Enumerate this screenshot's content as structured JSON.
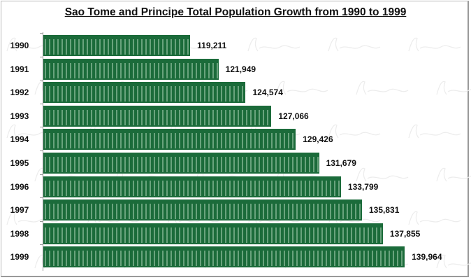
{
  "chart_data": {
    "type": "bar",
    "orientation": "horizontal",
    "title": "Sao Tome and Principe Total Population Growth from 1990 to 1999",
    "categories": [
      "1990",
      "1991",
      "1992",
      "1993",
      "1994",
      "1995",
      "1996",
      "1997",
      "1998",
      "1999"
    ],
    "values": [
      119211,
      121949,
      124574,
      127066,
      129426,
      131679,
      133799,
      135831,
      137855,
      139964
    ],
    "value_labels": [
      "119,211",
      "121,949",
      "124,574",
      "127,066",
      "129,426",
      "131,679",
      "133,799",
      "135,831",
      "137,855",
      "139,964"
    ],
    "xlim": [
      105000,
      140000
    ],
    "grid": false,
    "legend": "none",
    "bar_color": "#1b6b3a",
    "watermark": "Afrolaurel"
  }
}
